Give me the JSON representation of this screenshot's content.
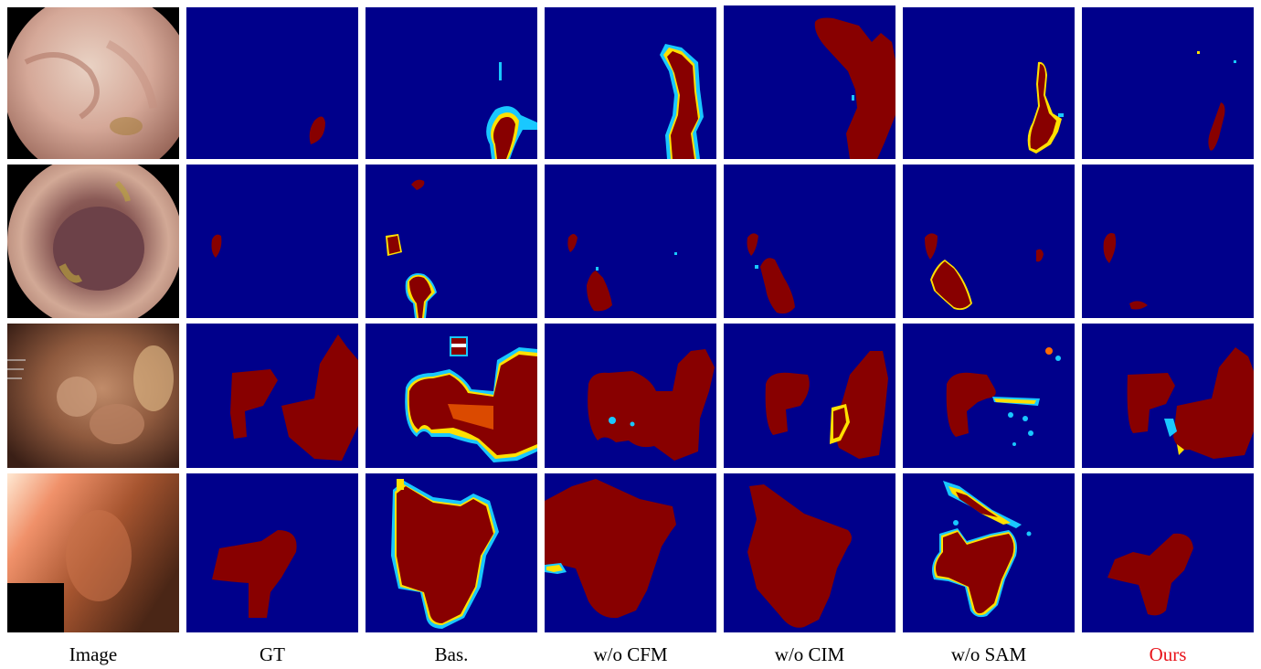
{
  "columns": [
    {
      "key": "image",
      "label": "Image",
      "color": "#000000"
    },
    {
      "key": "gt",
      "label": "GT",
      "color": "#000000"
    },
    {
      "key": "bas",
      "label": "Bas.",
      "color": "#000000"
    },
    {
      "key": "wo_cfm",
      "label": "w/o CFM",
      "color": "#000000"
    },
    {
      "key": "wo_cim",
      "label": "w/o CIM",
      "color": "#000000"
    },
    {
      "key": "wo_sam",
      "label": "w/o SAM",
      "color": "#000000"
    },
    {
      "key": "ours",
      "label": "Ours",
      "color": "#e8141b"
    }
  ],
  "colors": {
    "mask_background": "#00008b",
    "mask_foreground": "#880000",
    "uncertainty_cyan": "#19c8ff",
    "uncertainty_yellow": "#ffe000",
    "uncertainty_orange": "#ff6a00"
  },
  "rows": 4
}
